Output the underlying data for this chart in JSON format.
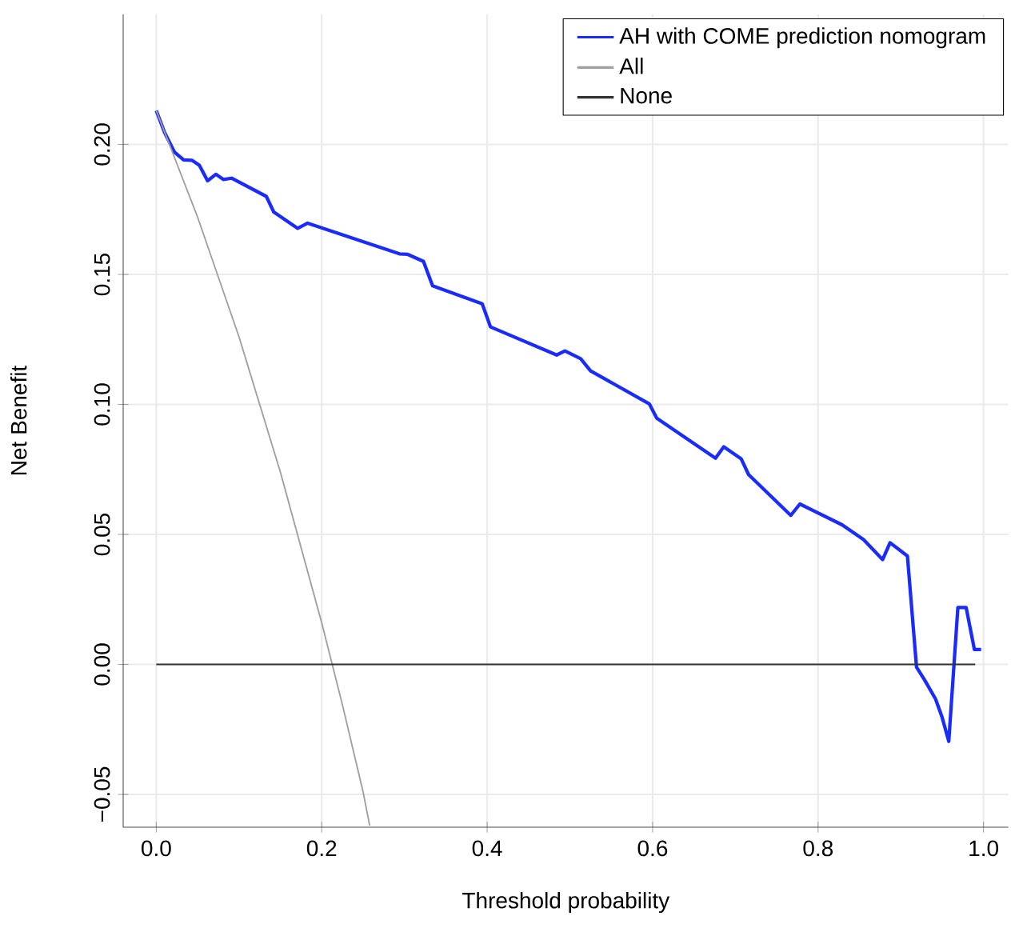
{
  "chart_data": {
    "type": "line",
    "xlabel": "Threshold probability",
    "ylabel": "Net Benefit",
    "xlim": [
      -0.04,
      1.03
    ],
    "ylim": [
      -0.0626,
      0.25
    ],
    "xticks": [
      {
        "value": 0,
        "label": "0.0"
      },
      {
        "value": 0.2,
        "label": "0.2"
      },
      {
        "value": 0.4,
        "label": "0.4"
      },
      {
        "value": 0.6,
        "label": "0.6"
      },
      {
        "value": 0.8,
        "label": "0.8"
      },
      {
        "value": 1,
        "label": "1.0"
      }
    ],
    "yticks": [
      {
        "value": -0.05,
        "label": "−0.05"
      },
      {
        "value": 0,
        "label": "0.00"
      },
      {
        "value": 0.05,
        "label": "0.05"
      },
      {
        "value": 0.1,
        "label": "0.10"
      },
      {
        "value": 0.15,
        "label": "0.15"
      },
      {
        "value": 0.2,
        "label": "0.20"
      }
    ],
    "grid": true,
    "legend": "top right",
    "series": [
      {
        "name": "AH with COME prediction nomogram",
        "color": "#1a2bff",
        "x": [
          0,
          0.01,
          0.022,
          0.033,
          0.043,
          0.052,
          0.062,
          0.072,
          0.081,
          0.091,
          0.133,
          0.142,
          0.171,
          0.183,
          0.294,
          0.304,
          0.323,
          0.334,
          0.394,
          0.404,
          0.484,
          0.494,
          0.513,
          0.525,
          0.596,
          0.605,
          0.676,
          0.686,
          0.707,
          0.716,
          0.767,
          0.778,
          0.829,
          0.855,
          0.878,
          0.887,
          0.908,
          0.919,
          0.929,
          0.942,
          0.95,
          0.958,
          0.969,
          0.979,
          0.989,
          0.997
        ],
        "values": [
          0.213,
          0.2046,
          0.197,
          0.194,
          0.1939,
          0.192,
          0.186,
          0.1885,
          0.1865,
          0.187,
          0.18,
          0.174,
          0.1677,
          0.1697,
          0.1579,
          0.1577,
          0.155,
          0.1456,
          0.1387,
          0.1298,
          0.119,
          0.1206,
          0.1176,
          0.1129,
          0.1002,
          0.0947,
          0.0793,
          0.0837,
          0.0791,
          0.073,
          0.0573,
          0.0617,
          0.0537,
          0.048,
          0.0403,
          0.0468,
          0.0417,
          -0.001,
          -0.0061,
          -0.0133,
          -0.0204,
          -0.0296,
          0.0219,
          0.0219,
          0.0057,
          0.0057
        ]
      },
      {
        "name": "All",
        "color": "#a0a0a0",
        "x": [
          0,
          0.05,
          0.1,
          0.15,
          0.2,
          0.225,
          0.25,
          0.258
        ],
        "values": [
          0.213,
          0.172,
          0.126,
          0.074,
          0.016,
          -0.0155,
          -0.049,
          -0.062
        ]
      },
      {
        "name": "None",
        "color": "#333333",
        "x": [
          0,
          0.99
        ],
        "values": [
          0,
          0
        ]
      }
    ]
  }
}
